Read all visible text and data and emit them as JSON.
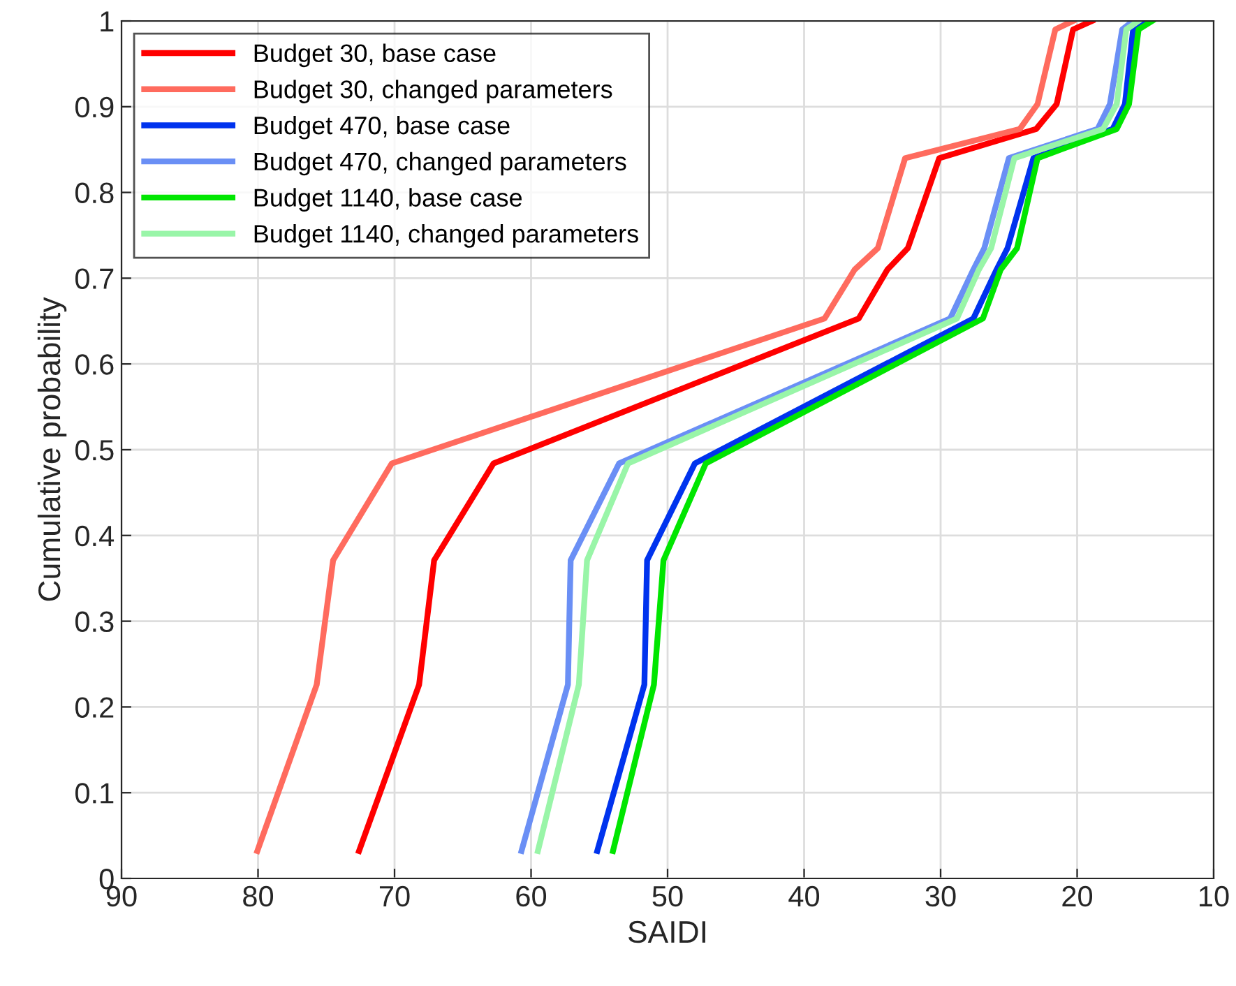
{
  "chart_data": {
    "type": "line",
    "xlabel": "SAIDI",
    "ylabel": "Cumulative probability",
    "xlim": [
      90,
      10
    ],
    "xticks": [
      90,
      80,
      70,
      60,
      50,
      40,
      30,
      20,
      10
    ],
    "ylim": [
      0,
      1
    ],
    "yticks": [
      0,
      0.1,
      0.2,
      0.3,
      0.4,
      0.5,
      0.6,
      0.7,
      0.8,
      0.9,
      1
    ],
    "grid": true,
    "legend": "top left",
    "marker": "none",
    "line_style": "solid",
    "series": [
      {
        "name": "Budget 30, base case",
        "color": "#ff0000",
        "x": [
          72.6,
          68.2,
          67.1,
          62.75,
          36.0,
          33.9,
          32.4,
          30.1,
          23.0,
          21.5,
          20.3,
          18.9
        ],
        "values": [
          0.032,
          0.226,
          0.371,
          0.484,
          0.653,
          0.71,
          0.735,
          0.84,
          0.874,
          0.903,
          0.99,
          1.0
        ]
      },
      {
        "name": "Budget 30, changed parameters",
        "color": "#ff6b5e",
        "x": [
          80.05,
          75.7,
          74.5,
          70.2,
          38.5,
          36.3,
          34.6,
          32.6,
          24.2,
          22.9,
          21.6,
          20.3
        ],
        "values": [
          0.032,
          0.226,
          0.371,
          0.484,
          0.653,
          0.71,
          0.735,
          0.84,
          0.874,
          0.903,
          0.99,
          1.0
        ]
      },
      {
        "name": "Budget 470, base case",
        "color": "#0033ee",
        "x": [
          55.15,
          51.7,
          51.5,
          48.0,
          27.6,
          25.9,
          25.1,
          23.2,
          17.4,
          16.5,
          15.9,
          14.8
        ],
        "values": [
          0.032,
          0.226,
          0.371,
          0.484,
          0.653,
          0.71,
          0.735,
          0.84,
          0.874,
          0.903,
          0.99,
          1.0
        ]
      },
      {
        "name": "Budget 470, changed parameters",
        "color": "#6a8ff5",
        "x": [
          60.7,
          57.3,
          57.1,
          53.55,
          29.3,
          27.6,
          26.8,
          25.0,
          18.5,
          17.6,
          16.7,
          15.9
        ],
        "values": [
          0.032,
          0.226,
          0.371,
          0.484,
          0.653,
          0.71,
          0.735,
          0.84,
          0.874,
          0.903,
          0.99,
          1.0
        ]
      },
      {
        "name": "Budget 1140, base case",
        "color": "#00e600",
        "x": [
          54.0,
          51.0,
          50.3,
          47.2,
          26.9,
          25.6,
          24.4,
          22.9,
          17.1,
          16.2,
          15.5,
          14.5
        ],
        "values": [
          0.032,
          0.226,
          0.371,
          0.484,
          0.653,
          0.71,
          0.735,
          0.84,
          0.874,
          0.903,
          0.99,
          1.0
        ]
      },
      {
        "name": "Budget 1140, changed parameters",
        "color": "#99f5a8",
        "x": [
          59.5,
          56.5,
          55.9,
          52.9,
          28.8,
          27.2,
          26.3,
          24.6,
          18.1,
          17.1,
          16.4,
          15.5
        ],
        "values": [
          0.032,
          0.226,
          0.371,
          0.484,
          0.653,
          0.71,
          0.735,
          0.84,
          0.874,
          0.903,
          0.99,
          1.0
        ]
      }
    ]
  }
}
